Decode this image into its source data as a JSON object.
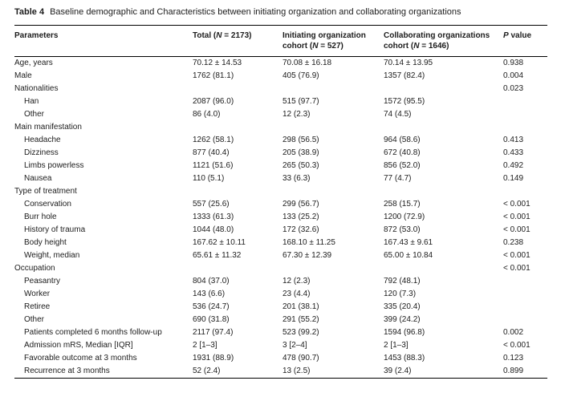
{
  "table": {
    "caption": {
      "number": "Table 4",
      "text": "Baseline demographic and Characteristics between initiating organization and collaborating organizations"
    },
    "columns": {
      "parameters": "Parameters",
      "total": {
        "pre": "Total (",
        "n": "N",
        "post": " = 2173)"
      },
      "initiating": {
        "line1": "Initiating organization",
        "line2_pre": "cohort (",
        "n": "N",
        "line2_post": " = 527)"
      },
      "collaborating": {
        "line1": "Collaborating organizations",
        "line2_pre": "cohort (",
        "n": "N",
        "line2_post": " = 1646)"
      },
      "p": {
        "italic": "P",
        "rest": " value"
      }
    },
    "rows": [
      {
        "label": "Age, years",
        "indent": false,
        "total": "70.12 ± 14.53",
        "initiating": "70.08 ± 16.18",
        "collaborating": "70.14 ± 13.95",
        "p": "0.938"
      },
      {
        "label": "Male",
        "indent": false,
        "total": "1762 (81.1)",
        "initiating": "405 (76.9)",
        "collaborating": "1357 (82.4)",
        "p": "0.004"
      },
      {
        "label": "Nationalities",
        "indent": false,
        "total": "",
        "initiating": "",
        "collaborating": "",
        "p": "0.023"
      },
      {
        "label": "Han",
        "indent": true,
        "total": "2087 (96.0)",
        "initiating": "515 (97.7)",
        "collaborating": "1572 (95.5)",
        "p": ""
      },
      {
        "label": "Other",
        "indent": true,
        "total": "86 (4.0)",
        "initiating": "12 (2.3)",
        "collaborating": "74 (4.5)",
        "p": ""
      },
      {
        "label": "Main manifestation",
        "indent": false,
        "total": "",
        "initiating": "",
        "collaborating": "",
        "p": ""
      },
      {
        "label": "Headache",
        "indent": true,
        "total": "1262 (58.1)",
        "initiating": "298 (56.5)",
        "collaborating": "964 (58.6)",
        "p": "0.413"
      },
      {
        "label": "Dizziness",
        "indent": true,
        "total": "877 (40.4)",
        "initiating": "205 (38.9)",
        "collaborating": "672 (40.8)",
        "p": "0.433"
      },
      {
        "label": "Limbs powerless",
        "indent": true,
        "total": "1121 (51.6)",
        "initiating": "265 (50.3)",
        "collaborating": "856 (52.0)",
        "p": "0.492"
      },
      {
        "label": "Nausea",
        "indent": true,
        "total": "110 (5.1)",
        "initiating": "33 (6.3)",
        "collaborating": "77 (4.7)",
        "p": "0.149"
      },
      {
        "label": "Type of treatment",
        "indent": false,
        "total": "",
        "initiating": "",
        "collaborating": "",
        "p": ""
      },
      {
        "label": "Conservation",
        "indent": true,
        "total": "557 (25.6)",
        "initiating": "299 (56.7)",
        "collaborating": "258 (15.7)",
        "p": "< 0.001"
      },
      {
        "label": "Burr hole",
        "indent": true,
        "total": "1333 (61.3)",
        "initiating": "133 (25.2)",
        "collaborating": "1200 (72.9)",
        "p": "< 0.001"
      },
      {
        "label": "History of trauma",
        "indent": true,
        "total": "1044 (48.0)",
        "initiating": "172 (32.6)",
        "collaborating": "872 (53.0)",
        "p": "< 0.001"
      },
      {
        "label": "Body height",
        "indent": true,
        "total": "167.62 ± 10.11",
        "initiating": "168.10 ± 11.25",
        "collaborating": "167.43 ± 9.61",
        "p": "0.238"
      },
      {
        "label": "Weight, median",
        "indent": true,
        "total": "65.61 ± 11.32",
        "initiating": "67.30 ± 12.39",
        "collaborating": "65.00 ± 10.84",
        "p": "< 0.001"
      },
      {
        "label": "Occupation",
        "indent": false,
        "total": "",
        "initiating": "",
        "collaborating": "",
        "p": "< 0.001"
      },
      {
        "label": "Peasantry",
        "indent": true,
        "total": "804 (37.0)",
        "initiating": "12 (2.3)",
        "collaborating": "792 (48.1)",
        "p": ""
      },
      {
        "label": "Worker",
        "indent": true,
        "total": "143 (6.6)",
        "initiating": "23 (4.4)",
        "collaborating": "120 (7.3)",
        "p": ""
      },
      {
        "label": "Retiree",
        "indent": true,
        "total": "536 (24.7)",
        "initiating": "201 (38.1)",
        "collaborating": "335 (20.4)",
        "p": ""
      },
      {
        "label": "Other",
        "indent": true,
        "total": "690 (31.8)",
        "initiating": "291 (55.2)",
        "collaborating": "399 (24.2)",
        "p": ""
      },
      {
        "label": "Patients completed 6 months follow-up",
        "indent": true,
        "total": "2117 (97.4)",
        "initiating": "523 (99.2)",
        "collaborating": "1594 (96.8)",
        "p": "0.002"
      },
      {
        "label": "Admission mRS, Median [IQR]",
        "indent": true,
        "total": "2 [1–3]",
        "initiating": "3 [2–4]",
        "collaborating": "2 [1–3]",
        "p": "< 0.001"
      },
      {
        "label": "Favorable outcome at 3 months",
        "indent": true,
        "total": "1931 (88.9)",
        "initiating": "478 (90.7)",
        "collaborating": "1453 (88.3)",
        "p": "0.123"
      },
      {
        "label": "Recurrence at 3 months",
        "indent": true,
        "total": "52 (2.4)",
        "initiating": "13 (2.5)",
        "collaborating": "39 (2.4)",
        "p": "0.899"
      }
    ]
  }
}
